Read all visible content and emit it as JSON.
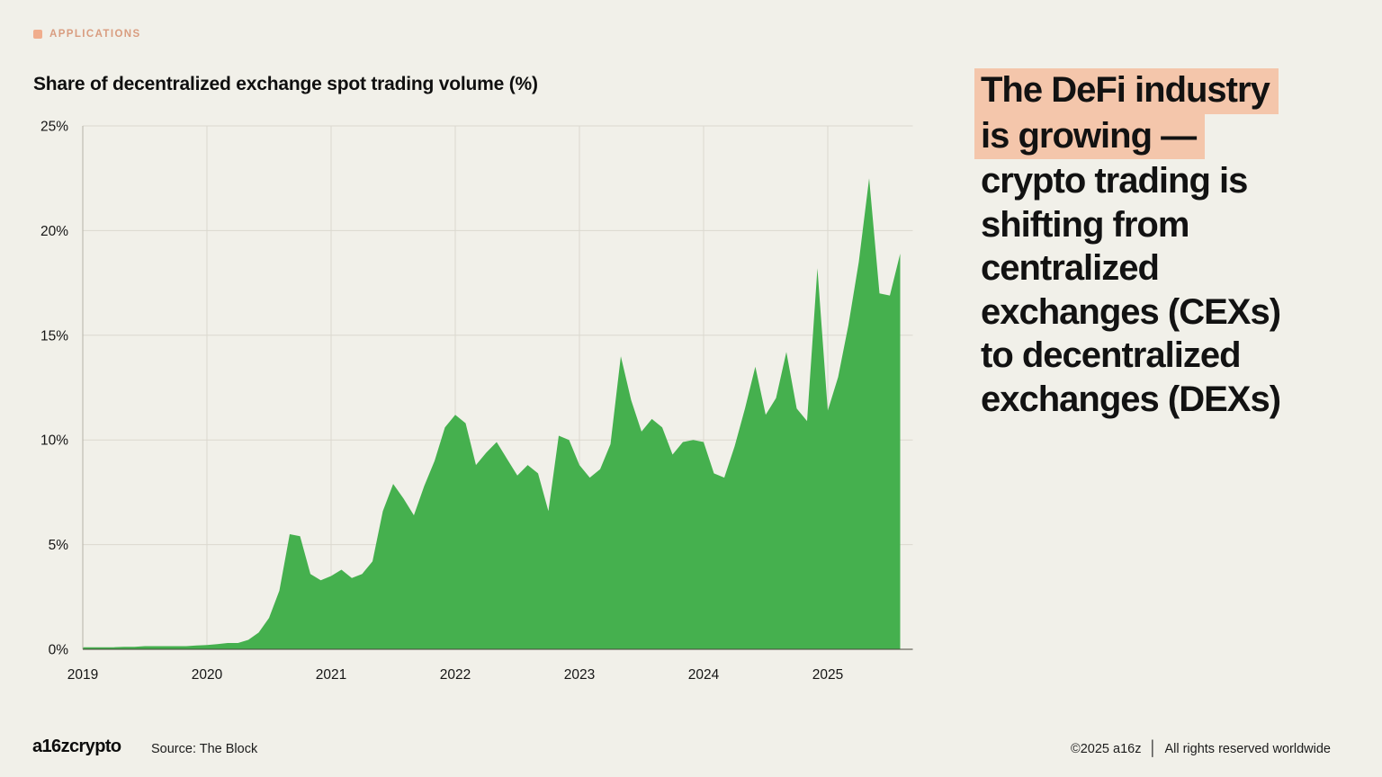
{
  "eyebrow": {
    "label": "APPLICATIONS"
  },
  "chart_title": "Share of decentralized exchange spot trading volume (%)",
  "headline": {
    "lines": [
      {
        "text": "The DeFi industry",
        "highlight": true
      },
      {
        "text": "is growing —",
        "highlight": true
      },
      {
        "text": "crypto trading is",
        "highlight": false
      },
      {
        "text": "shifting from",
        "highlight": false
      },
      {
        "text": "centralized",
        "highlight": false
      },
      {
        "text": "exchanges (CEXs)",
        "highlight": false
      },
      {
        "text": "to decentralized",
        "highlight": false
      },
      {
        "text": "exchanges (DEXs)",
        "highlight": false
      }
    ]
  },
  "footer": {
    "logo": "a16zcrypto",
    "source": "Source: The Block",
    "copyright": "©2025 a16z",
    "divider": "│",
    "rights": "All rights reserved worldwide"
  },
  "chart_data": {
    "type": "area",
    "title": "Share of decentralized exchange spot trading volume (%)",
    "x_start": "2019-01",
    "x_end": "2025-08",
    "frequency": "monthly",
    "x_tick_labels": [
      "2019",
      "2020",
      "2021",
      "2022",
      "2023",
      "2024",
      "2025"
    ],
    "y_tick_labels": [
      "0%",
      "5%",
      "10%",
      "15%",
      "20%",
      "25%"
    ],
    "ylim": [
      0,
      25
    ],
    "grid": true,
    "legend": false,
    "fill_color": "#45b04e",
    "grid_color": "#dbd8cf",
    "left_axis_color": "#b5b2a8",
    "bottom_axis_color": "#46433b",
    "series": [
      {
        "name": "DEX share of spot trading volume (%)",
        "values": [
          0.1,
          0.1,
          0.1,
          0.1,
          0.12,
          0.12,
          0.15,
          0.15,
          0.15,
          0.15,
          0.15,
          0.18,
          0.2,
          0.25,
          0.3,
          0.3,
          0.45,
          0.8,
          1.5,
          2.8,
          5.5,
          5.4,
          3.6,
          3.3,
          3.5,
          3.8,
          3.4,
          3.6,
          4.2,
          6.6,
          7.9,
          7.2,
          6.4,
          7.8,
          9.0,
          10.6,
          11.2,
          10.8,
          8.8,
          9.4,
          9.9,
          9.1,
          8.3,
          8.8,
          8.4,
          6.6,
          10.2,
          10.0,
          8.8,
          8.2,
          8.6,
          9.8,
          14.0,
          11.9,
          10.4,
          11.0,
          10.6,
          9.3,
          9.9,
          10.0,
          9.9,
          8.4,
          8.2,
          9.7,
          11.5,
          13.5,
          11.2,
          12.0,
          14.2,
          11.5,
          10.9,
          18.2,
          11.4,
          13.0,
          15.5,
          18.5,
          22.5,
          17.0,
          16.9,
          18.9
        ]
      }
    ]
  }
}
